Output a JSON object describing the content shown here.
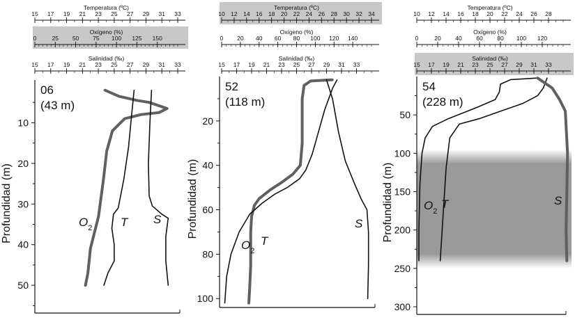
{
  "chart_data": [
    {
      "type": "line",
      "station": "06",
      "depth_label": "(43 m)",
      "ylabel": "Profundidad (m)",
      "ylim": [
        0,
        57
      ],
      "yticks": [
        10,
        20,
        30,
        40,
        50
      ],
      "highlighted_axis": "oxygen",
      "axes": [
        {
          "key": "temperature",
          "title": "Temperatura (ºC)",
          "range": [
            15,
            33
          ],
          "ticks": [
            15,
            17,
            19,
            21,
            23,
            25,
            27,
            29,
            31,
            33
          ],
          "minor": 1
        },
        {
          "key": "oxygen",
          "title": "Oxígeno (%)",
          "range": [
            0,
            175
          ],
          "ticks": [
            0,
            25,
            50,
            75,
            100,
            125,
            150
          ],
          "minor": 5
        },
        {
          "key": "salinity",
          "title": "Salinidad (‰)",
          "range": [
            15,
            33
          ],
          "ticks": [
            15,
            17,
            19,
            21,
            23,
            25,
            27,
            29,
            31,
            33
          ],
          "minor": 1
        }
      ],
      "series": [
        {
          "name": "O2",
          "label": "O",
          "label_sub": "2",
          "axis": "oxygen",
          "color": "#606060",
          "width": 4,
          "points": [
            [
              86,
              2
            ],
            [
              103,
              3.5
            ],
            [
              125,
              4.5
            ],
            [
              140,
              5
            ],
            [
              162,
              6.5
            ],
            [
              152,
              7.5
            ],
            [
              130,
              8
            ],
            [
              110,
              9
            ],
            [
              95,
              12
            ],
            [
              88,
              17
            ],
            [
              84,
              24
            ],
            [
              78,
              33
            ],
            [
              68,
              41
            ],
            [
              65,
              47
            ],
            [
              62,
              50
            ]
          ]
        },
        {
          "name": "T",
          "label": "T",
          "axis": "temperature",
          "color": "#111111",
          "width": 1.6,
          "points": [
            [
              27.5,
              2
            ],
            [
              27.2,
              8
            ],
            [
              26.8,
              16
            ],
            [
              26.2,
              24
            ],
            [
              25.5,
              31
            ],
            [
              24.9,
              32.5
            ],
            [
              24.7,
              36
            ],
            [
              25.0,
              40
            ],
            [
              25.0,
              44
            ],
            [
              24.2,
              47
            ],
            [
              23.7,
              50
            ]
          ]
        },
        {
          "name": "S",
          "label": "S",
          "axis": "salinity",
          "color": "#111111",
          "width": 1.6,
          "points": [
            [
              29.7,
              2
            ],
            [
              29.5,
              10
            ],
            [
              29.3,
              20
            ],
            [
              29.4,
              28
            ],
            [
              29.8,
              30.5
            ],
            [
              31.0,
              32.5
            ],
            [
              31.8,
              33.5
            ],
            [
              31.5,
              38
            ],
            [
              31.5,
              44
            ],
            [
              31.8,
              50
            ]
          ]
        }
      ]
    },
    {
      "type": "line",
      "station": "52",
      "depth_label": "(118 m)",
      "ylabel": "Profundidad (m)",
      "ylim": [
        0,
        104
      ],
      "yticks": [
        20,
        40,
        60,
        80,
        100
      ],
      "highlighted_axis": "temperature",
      "axes": [
        {
          "key": "temperature",
          "title": "Temperatura (ºC)",
          "range": [
            10,
            34
          ],
          "ticks": [
            10,
            12,
            14,
            16,
            18,
            20,
            22,
            24,
            26,
            28,
            30,
            32,
            34
          ],
          "minor": 1
        },
        {
          "key": "oxygen",
          "title": "Oxígeno (%)",
          "range": [
            0,
            160
          ],
          "ticks": [
            0,
            20,
            40,
            60,
            80,
            100,
            120,
            140
          ],
          "minor": 5
        },
        {
          "key": "salinity",
          "title": "Salinidad (‰)",
          "range": [
            15,
            35
          ],
          "ticks": [
            15,
            17,
            19,
            21,
            23,
            25,
            27,
            29,
            31,
            33
          ],
          "minor": 1
        }
      ],
      "series": [
        {
          "name": "O2",
          "label": "O",
          "label_sub": "2",
          "axis": "oxygen",
          "color": "#606060",
          "width": 4,
          "points": [
            [
              118,
              1.5
            ],
            [
              95,
              2
            ],
            [
              88,
              4
            ],
            [
              86,
              10
            ],
            [
              86,
              20
            ],
            [
              86,
              30
            ],
            [
              84,
              40
            ],
            [
              76,
              44
            ],
            [
              63,
              48
            ],
            [
              52,
              51
            ],
            [
              40,
              55
            ],
            [
              35,
              58
            ],
            [
              32,
              63
            ],
            [
              31,
              70
            ],
            [
              31,
              85
            ],
            [
              30,
              95
            ],
            [
              29,
              102
            ]
          ]
        },
        {
          "name": "T",
          "label": "T",
          "axis": "temperature",
          "color": "#111111",
          "width": 1.6,
          "points": [
            [
              28.5,
              1.5
            ],
            [
              27.8,
              5
            ],
            [
              26.5,
              15
            ],
            [
              25.5,
              25
            ],
            [
              24.5,
              35
            ],
            [
              23.5,
              42
            ],
            [
              22.5,
              46
            ],
            [
              20.5,
              50
            ],
            [
              18.5,
              53
            ],
            [
              16.5,
              57
            ],
            [
              14.5,
              62
            ],
            [
              12.8,
              70
            ],
            [
              11.5,
              80
            ],
            [
              10.8,
              90
            ],
            [
              10.5,
              102
            ]
          ]
        },
        {
          "name": "S",
          "label": "S",
          "axis": "salinity",
          "color": "#111111",
          "width": 1.6,
          "points": [
            [
              29.0,
              1.5
            ],
            [
              29.8,
              10
            ],
            [
              30.6,
              25
            ],
            [
              31.5,
              38
            ],
            [
              32.7,
              48
            ],
            [
              33.6,
              55
            ],
            [
              34.4,
              60
            ],
            [
              34.6,
              70
            ],
            [
              34.6,
              85
            ],
            [
              34.5,
              100
            ]
          ]
        }
      ]
    },
    {
      "type": "line",
      "station": "54",
      "depth_label": "(228 m)",
      "ylabel": "Profundidad (m)",
      "ylim": [
        0,
        310
      ],
      "yticks": [
        50,
        100,
        150,
        200,
        250,
        300
      ],
      "highlighted_axis": "salinity",
      "shaded_depth": [
        95,
        250
      ],
      "axes": [
        {
          "key": "temperature",
          "title": "Temperatura (ºC)",
          "range": [
            10,
            30
          ],
          "ticks": [
            10,
            12,
            14,
            16,
            18,
            20,
            22,
            24,
            26,
            28
          ],
          "minor": 1
        },
        {
          "key": "oxygen",
          "title": "Oxígeno (%)",
          "range": [
            0,
            140
          ],
          "ticks": [
            0,
            20,
            40,
            60,
            80,
            100,
            120
          ],
          "minor": 5
        },
        {
          "key": "salinity",
          "title": "Salinidad (‰)",
          "range": [
            15,
            35
          ],
          "ticks": [
            15,
            17,
            19,
            21,
            23,
            25,
            27,
            29,
            31,
            33
          ],
          "minor": 1
        }
      ],
      "series": [
        {
          "name": "O2",
          "label": "O",
          "label_sub": "2",
          "axis": "oxygen",
          "color": "#111111",
          "width": 1.6,
          "points": [
            [
              115,
              2
            ],
            [
              90,
              4
            ],
            [
              80,
              10
            ],
            [
              79,
              20
            ],
            [
              75,
              30
            ],
            [
              58,
              40
            ],
            [
              30,
              55
            ],
            [
              15,
              65
            ],
            [
              8,
              80
            ],
            [
              5,
              100
            ],
            [
              3,
              140
            ],
            [
              2,
              200
            ],
            [
              2,
              240
            ]
          ]
        },
        {
          "name": "T",
          "label": "T",
          "axis": "temperature",
          "color": "#111111",
          "width": 1.6,
          "points": [
            [
              27.8,
              2
            ],
            [
              27.3,
              15
            ],
            [
              26.5,
              25
            ],
            [
              24.5,
              35
            ],
            [
              21.5,
              45
            ],
            [
              18.5,
              55
            ],
            [
              15.8,
              62
            ],
            [
              14.5,
              80
            ],
            [
              14.0,
              120
            ],
            [
              13.6,
              180
            ],
            [
              13.2,
              240
            ]
          ]
        },
        {
          "name": "S",
          "label": "S",
          "axis": "salinity",
          "color": "#606060",
          "width": 4,
          "points": [
            [
              31.5,
              2
            ],
            [
              33.5,
              15
            ],
            [
              34.5,
              30
            ],
            [
              35.3,
              45
            ],
            [
              35.6,
              100
            ],
            [
              35.5,
              150
            ],
            [
              35.4,
              200
            ],
            [
              35.5,
              240
            ]
          ]
        }
      ]
    }
  ]
}
